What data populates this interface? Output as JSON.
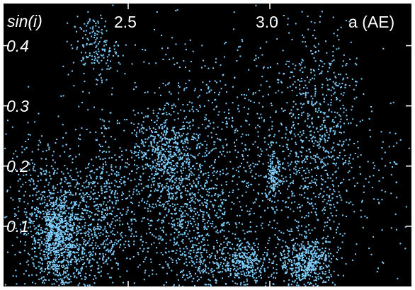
{
  "chart_data": {
    "type": "scatter",
    "title": "",
    "xlabel": "a (AE)",
    "ylabel": "sin(i)",
    "xlim": [
      2.06,
      3.5
    ],
    "ylim": [
      0.0,
      0.47
    ],
    "x_ticks": [
      2.5,
      3.0
    ],
    "x_tick_labels": [
      "2.5",
      "3.0"
    ],
    "y_ticks": [
      0.1,
      0.2,
      0.3,
      0.4
    ],
    "y_tick_labels": [
      "0.1",
      "0.2",
      "0.3",
      "0.4"
    ],
    "point_color": "#7fd0ff",
    "background": "#000000",
    "grid": false,
    "legend": "none",
    "series": [
      {
        "name": "",
        "clusters": [
          {
            "x": 2.25,
            "y": 0.08,
            "sx": 0.04,
            "sy": 0.04,
            "n": 650
          },
          {
            "x": 2.2,
            "y": 0.12,
            "sx": 0.08,
            "sy": 0.07,
            "n": 500
          },
          {
            "x": 2.36,
            "y": 0.09,
            "sx": 0.08,
            "sy": 0.06,
            "n": 600
          },
          {
            "x": 2.43,
            "y": 0.17,
            "sx": 0.05,
            "sy": 0.07,
            "n": 220
          },
          {
            "x": 2.38,
            "y": 0.4,
            "sx": 0.04,
            "sy": 0.025,
            "n": 160
          },
          {
            "x": 2.62,
            "y": 0.23,
            "sx": 0.05,
            "sy": 0.03,
            "n": 350
          },
          {
            "x": 2.65,
            "y": 0.14,
            "sx": 0.07,
            "sy": 0.06,
            "n": 450
          },
          {
            "x": 2.75,
            "y": 0.13,
            "sx": 0.07,
            "sy": 0.09,
            "n": 500
          },
          {
            "x": 2.8,
            "y": 0.03,
            "sx": 0.08,
            "sy": 0.02,
            "n": 200
          },
          {
            "x": 2.92,
            "y": 0.045,
            "sx": 0.04,
            "sy": 0.015,
            "n": 220
          },
          {
            "x": 2.92,
            "y": 0.17,
            "sx": 0.07,
            "sy": 0.1,
            "n": 260
          },
          {
            "x": 3.01,
            "y": 0.18,
            "sx": 0.012,
            "sy": 0.02,
            "n": 140
          },
          {
            "x": 3.13,
            "y": 0.04,
            "sx": 0.05,
            "sy": 0.02,
            "n": 450
          },
          {
            "x": 3.15,
            "y": 0.2,
            "sx": 0.08,
            "sy": 0.1,
            "n": 700
          },
          {
            "x": 3.2,
            "y": 0.3,
            "sx": 0.06,
            "sy": 0.08,
            "n": 200
          },
          {
            "x": 2.75,
            "y": 0.3,
            "sx": 0.2,
            "sy": 0.09,
            "n": 350
          },
          {
            "x": 3.4,
            "y": 0.15,
            "sx": 0.06,
            "sy": 0.08,
            "n": 70
          }
        ]
      }
    ]
  }
}
